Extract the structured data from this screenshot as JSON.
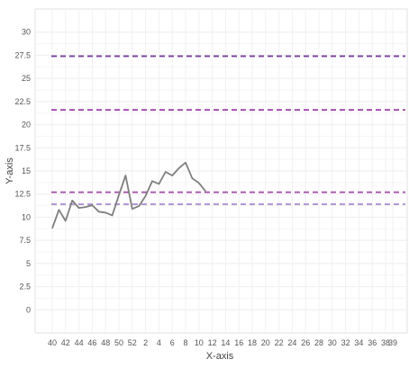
{
  "chart_data": {
    "type": "line",
    "xlabel": "X-axis",
    "ylabel": "Y-axis",
    "x_tick_labels": [
      "40",
      "42",
      "44",
      "46",
      "48",
      "50",
      "52",
      "2",
      "4",
      "6",
      "8",
      "10",
      "12",
      "14",
      "16",
      "18",
      "20",
      "22",
      "24",
      "26",
      "28",
      "30",
      "32",
      "34",
      "36",
      "38",
      "39"
    ],
    "y_ticks": [
      0,
      2.5,
      5,
      7.5,
      10,
      12.5,
      15,
      17.5,
      20,
      22.5,
      25,
      27.5,
      30
    ],
    "y_tick_labels": [
      "0",
      "2.5",
      "5",
      "7.5",
      "10",
      "12.5",
      "15",
      "17.5",
      "20",
      "22.5",
      "25",
      "27.5",
      "30"
    ],
    "ylim": [
      -2.5,
      32.5
    ],
    "grid": true,
    "series": [
      {
        "type": "line",
        "color": "#7f7f7f",
        "x": [
          "40",
          "41",
          "42",
          "43",
          "44",
          "45",
          "46",
          "47",
          "48",
          "49",
          "50",
          "51",
          "52",
          "1",
          "2",
          "3",
          "4",
          "5",
          "6",
          "7",
          "8",
          "9",
          "10",
          "11"
        ],
        "values": [
          8.8,
          10.8,
          9.6,
          11.8,
          11.0,
          11.1,
          11.3,
          10.6,
          10.5,
          10.2,
          12.4,
          14.5,
          10.9,
          11.2,
          12.3,
          13.9,
          13.6,
          14.9,
          14.5,
          15.3,
          15.9,
          14.2,
          13.7,
          12.8
        ]
      }
    ],
    "reference_lines": [
      {
        "y": 27.4,
        "color": "#7b3fa0",
        "style": "dashed"
      },
      {
        "y": 21.6,
        "color": "#9b3fa8",
        "style": "dashed"
      },
      {
        "y": 12.7,
        "color": "#a24aa8",
        "style": "dashed"
      },
      {
        "y": 11.4,
        "color": "#a48ad0",
        "style": "dashed"
      }
    ]
  }
}
